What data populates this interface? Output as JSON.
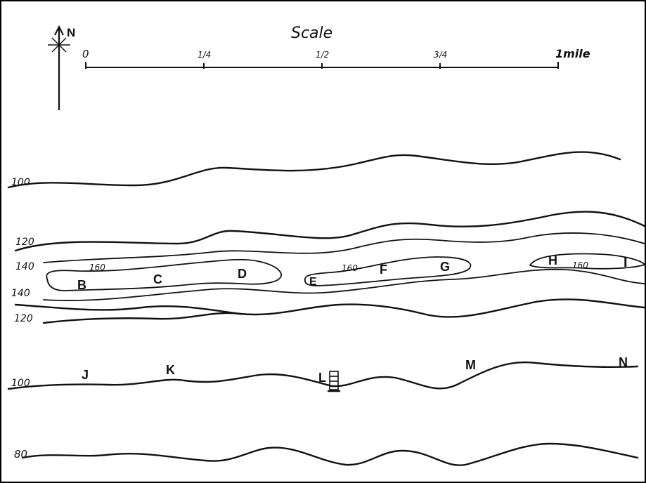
{
  "compass": {
    "label": "N"
  },
  "scale": {
    "title": "Scale",
    "ticks": [
      "0",
      "1/4",
      "1/2",
      "3/4",
      "1mile"
    ]
  },
  "contour_labels": {
    "c100_top": "100",
    "c120_upper": "120",
    "c140_upper": "140",
    "c160_left": "160",
    "c160_mid": "160",
    "c160_right": "160",
    "c140_lower": "140",
    "c120_lower": "120",
    "c100_lower": "100",
    "c80": "80"
  },
  "points": {
    "B": "B",
    "C": "C",
    "D": "D",
    "E": "E",
    "F": "F",
    "G": "G",
    "H": "H",
    "I": "I",
    "J": "J",
    "K": "K",
    "L": "L",
    "M": "M",
    "N": "N"
  },
  "symbols": {
    "tower": "tower-icon"
  }
}
